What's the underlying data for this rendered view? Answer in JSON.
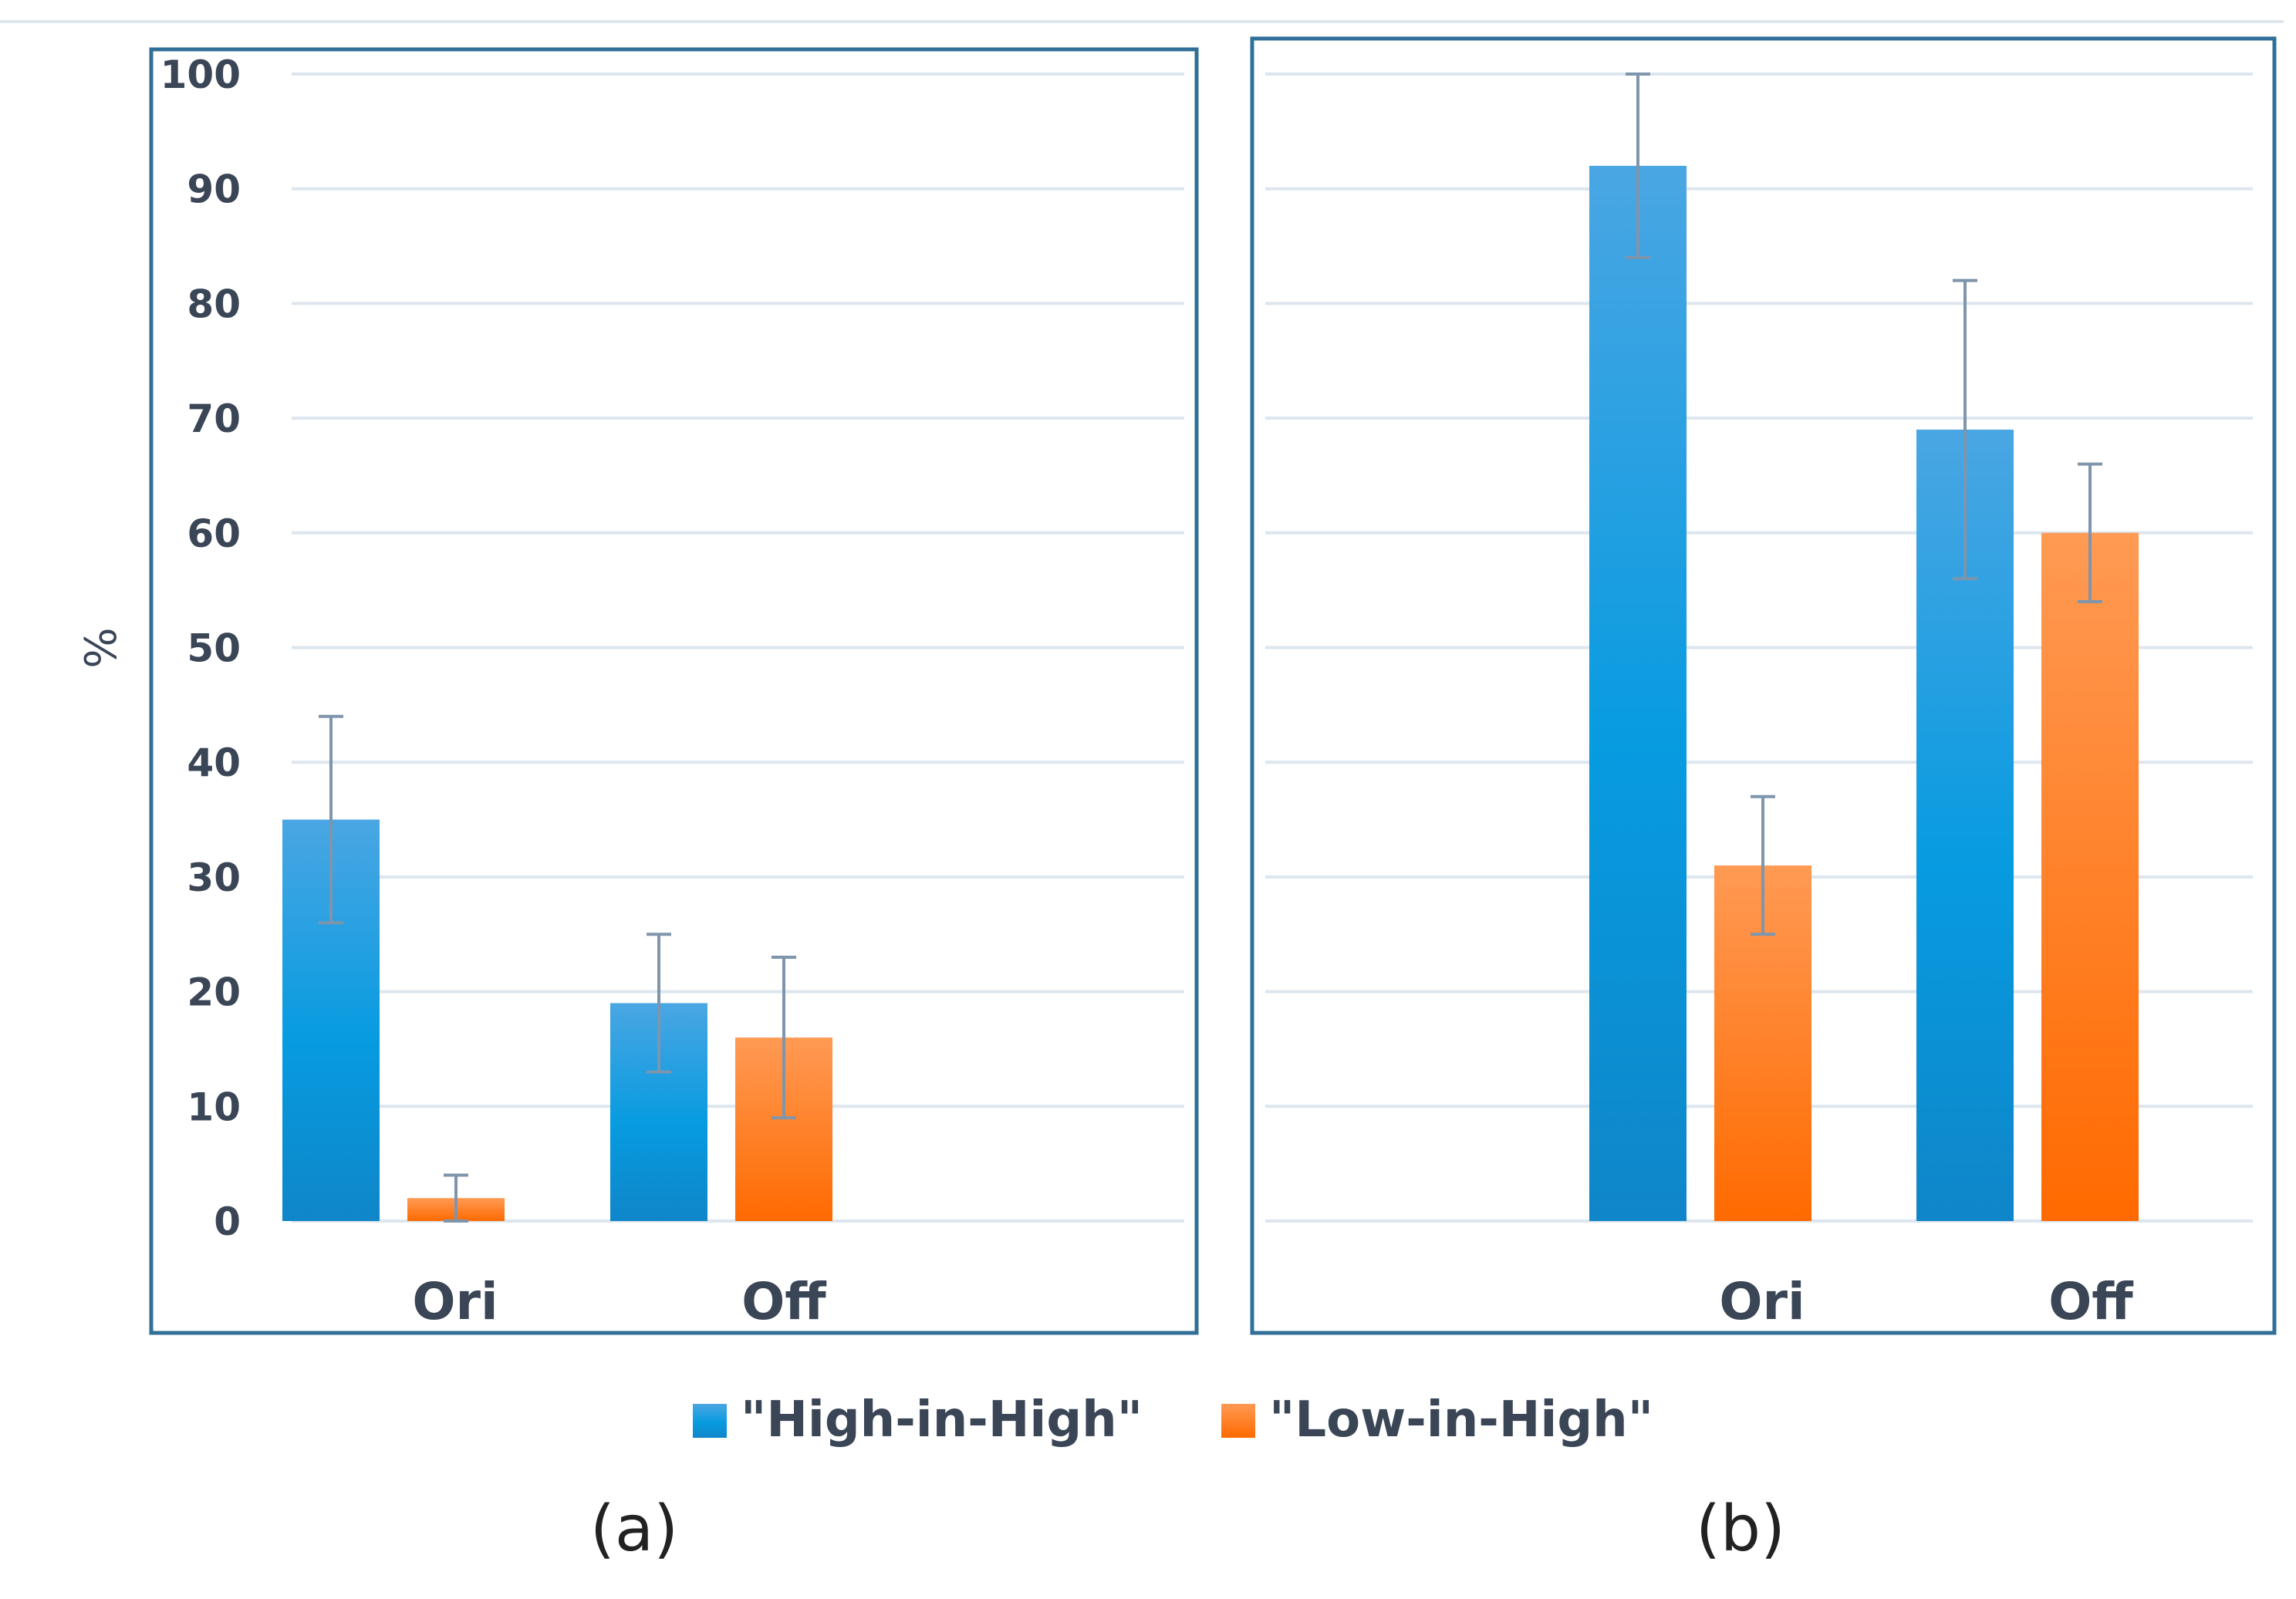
{
  "colors": {
    "high": "#1e9ce0",
    "low": "#ff7a1f",
    "frame": "#2f6f98",
    "grid": "#dde6ee",
    "error_bar": "#7e95ac"
  },
  "legend": {
    "series": [
      "\"High-in-High\"",
      "\"Low-in-High\""
    ]
  },
  "chart_data": [
    {
      "type": "bar",
      "panel_label": "(a)",
      "categories": [
        "Ori",
        "Off"
      ],
      "ylabel": "%",
      "ylim": [
        0,
        100
      ],
      "yticks": [
        0,
        10,
        20,
        30,
        40,
        50,
        60,
        70,
        80,
        90,
        100
      ],
      "series": [
        {
          "name": "\"High-in-High\"",
          "values": [
            35,
            19
          ],
          "err_low": [
            26,
            13
          ],
          "err_high": [
            44,
            25
          ]
        },
        {
          "name": "\"Low-in-High\"",
          "values": [
            2,
            16
          ],
          "err_low": [
            0,
            9
          ],
          "err_high": [
            4,
            23
          ]
        }
      ]
    },
    {
      "type": "bar",
      "panel_label": "(b)",
      "categories": [
        "Ori",
        "Off"
      ],
      "ylabel": "",
      "ylim": [
        0,
        100
      ],
      "yticks": [
        0,
        10,
        20,
        30,
        40,
        50,
        60,
        70,
        80,
        90,
        100
      ],
      "series": [
        {
          "name": "\"High-in-High\"",
          "values": [
            92,
            69
          ],
          "err_low": [
            84,
            56
          ],
          "err_high": [
            100,
            82
          ]
        },
        {
          "name": "\"Low-in-High\"",
          "values": [
            31,
            60
          ],
          "err_low": [
            25,
            54
          ],
          "err_high": [
            37,
            66
          ]
        }
      ]
    }
  ]
}
